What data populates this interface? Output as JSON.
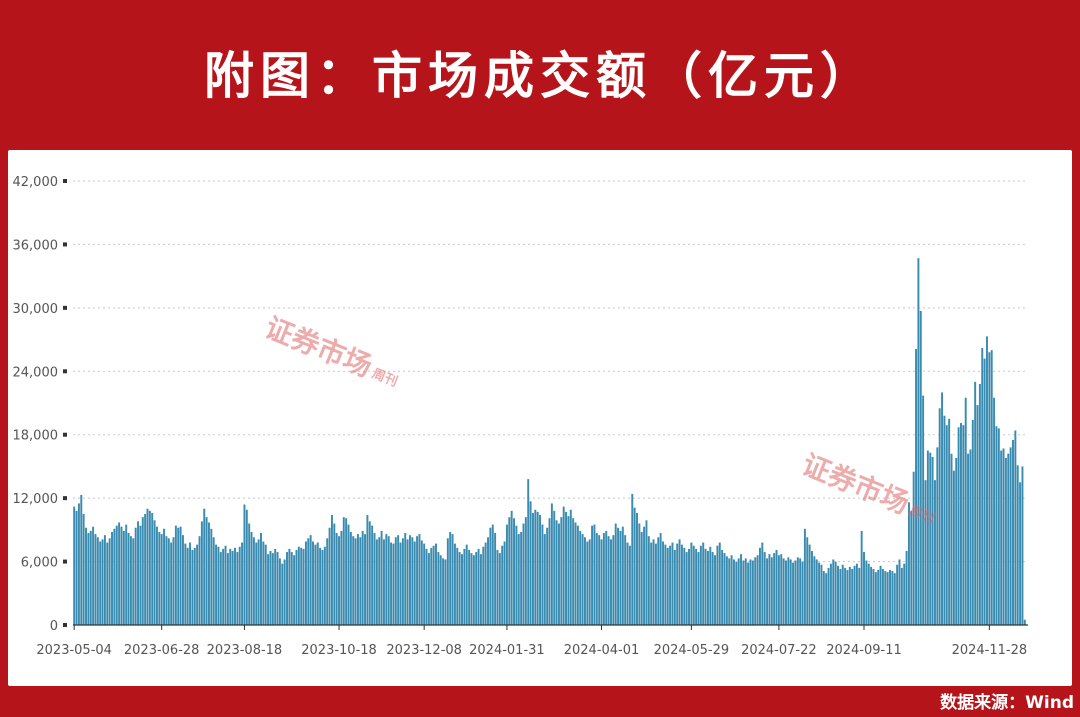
{
  "title": "附图：市场成交额（亿元）",
  "source": "数据来源：Wind",
  "watermark": {
    "main": "证券市场",
    "side": "周刊"
  },
  "colors": {
    "background": "#b5151a",
    "bar": "#3a8bb0",
    "bar_edge": "#2f6f8f",
    "grid": "#c8c8c8",
    "text": "#555555"
  },
  "chart_data": {
    "type": "bar",
    "title": "附图：市场成交额（亿元）",
    "xlabel": "",
    "ylabel": "",
    "ylim": [
      0,
      42000
    ],
    "yticks": [
      0,
      6000,
      12000,
      18000,
      24000,
      30000,
      36000,
      42000
    ],
    "ytick_labels": [
      "0",
      "6,000",
      "12,000",
      "18,000",
      "24,000",
      "30,000",
      "36,000",
      "42,000"
    ],
    "xtick_labels": [
      "2023-05-04",
      "2023-06-28",
      "2023-08-18",
      "2023-10-18",
      "2023-12-08",
      "2024-01-31",
      "2024-04-01",
      "2024-05-29",
      "2024-07-22",
      "2024-09-11",
      "2024-11-28"
    ],
    "xtick_index": [
      0,
      37,
      72,
      112,
      148,
      183,
      223,
      261,
      298,
      334,
      387
    ],
    "grid": "horizontal-dotted",
    "values": [
      11200,
      10800,
      11500,
      12300,
      10500,
      9200,
      8700,
      8900,
      9300,
      8600,
      8300,
      7900,
      8100,
      8500,
      7800,
      8200,
      8800,
      9100,
      9400,
      9700,
      9300,
      8900,
      9500,
      8700,
      8400,
      8200,
      9200,
      9800,
      9400,
      10200,
      10500,
      11000,
      10800,
      10600,
      9900,
      9300,
      8800,
      8600,
      9100,
      8400,
      8200,
      7800,
      8300,
      9400,
      9200,
      9300,
      8500,
      7700,
      7300,
      7800,
      7100,
      7300,
      7600,
      8400,
      9800,
      11000,
      10200,
      9700,
      9100,
      8300,
      7600,
      7400,
      6900,
      7200,
      7500,
      6800,
      7200,
      7000,
      7300,
      6900,
      7400,
      7800,
      11400,
      10900,
      9600,
      8800,
      8300,
      7800,
      8100,
      8700,
      7900,
      7600,
      6700,
      7000,
      6800,
      7200,
      6900,
      6300,
      5800,
      6200,
      6900,
      7200,
      6900,
      6600,
      7100,
      7400,
      7300,
      7200,
      7900,
      8200,
      8500,
      7900,
      7600,
      7800,
      7300,
      7100,
      7400,
      8200,
      9200,
      10400,
      9600,
      8700,
      8400,
      8900,
      10200,
      10100,
      9500,
      8800,
      8400,
      8200,
      8600,
      8300,
      8900,
      8600,
      10400,
      9800,
      9400,
      8700,
      8100,
      8300,
      8900,
      8100,
      8600,
      8400,
      7800,
      7700,
      8300,
      8500,
      7800,
      8200,
      8700,
      8100,
      8500,
      8300,
      7900,
      8400,
      8600,
      8000,
      7700,
      7200,
      6800,
      7300,
      7500,
      7700,
      6900,
      6600,
      6300,
      6200,
      8200,
      8800,
      8600,
      7700,
      7300,
      6900,
      6700,
      7200,
      7600,
      7100,
      6800,
      6600,
      6900,
      7200,
      6700,
      7400,
      7800,
      8300,
      9200,
      9500,
      8700,
      7100,
      6800,
      7500,
      7900,
      9500,
      10200,
      10800,
      10100,
      9400,
      8600,
      8800,
      9600,
      10200,
      13800,
      11700,
      10600,
      10900,
      10700,
      10400,
      9500,
      8600,
      9200,
      10100,
      11500,
      10800,
      9900,
      9600,
      10200,
      11200,
      10700,
      10300,
      10900,
      10100,
      9700,
      9400,
      8900,
      8600,
      8300,
      7900,
      8100,
      9400,
      9500,
      8700,
      8500,
      8100,
      8700,
      8900,
      8400,
      8100,
      8500,
      9600,
      9200,
      8900,
      9300,
      8500,
      7800,
      7500,
      12400,
      11100,
      10600,
      9600,
      8800,
      9300,
      9900,
      8400,
      7800,
      8100,
      7700,
      8300,
      8700,
      7900,
      7600,
      7300,
      7500,
      7800,
      7100,
      7700,
      8100,
      7600,
      7300,
      6900,
      7200,
      7800,
      7500,
      7200,
      6900,
      7500,
      7800,
      7200,
      7000,
      7400,
      6900,
      6600,
      7500,
      7800,
      7100,
      6800,
      6500,
      6300,
      6600,
      6200,
      6000,
      6300,
      6700,
      6100,
      6300,
      5900,
      6200,
      6100,
      6400,
      6600,
      7300,
      7800,
      6900,
      6300,
      6700,
      6400,
      6800,
      7100,
      6600,
      6700,
      6300,
      6100,
      6400,
      6200,
      5900,
      6100,
      6400,
      6300,
      6000,
      9100,
      8300,
      7600,
      7000,
      6500,
      6200,
      5900,
      5700,
      5100,
      4900,
      5400,
      5800,
      6200,
      6000,
      5600,
      5300,
      5700,
      5400,
      5200,
      5500,
      5300,
      5600,
      5800,
      5400,
      8900,
      6900,
      6100,
      5800,
      5500,
      5300,
      5000,
      5200,
      5600,
      5300,
      5100,
      5000,
      5200,
      5100,
      4900,
      5700,
      6200,
      5400,
      5800,
      7000,
      11600,
      10800,
      14500,
      26100,
      34700,
      29700,
      21700,
      13700,
      16500,
      16300,
      15900,
      13700,
      16800,
      20500,
      22000,
      19800,
      18900,
      19500,
      16200,
      14600,
      15800,
      18700,
      19100,
      18900,
      21500,
      16200,
      16600,
      19400,
      23000,
      20800,
      22800,
      26200,
      25200,
      27300,
      25800,
      26000,
      21500,
      18800,
      18600,
      16500,
      16700,
      15800,
      16200,
      16800,
      17500,
      18400,
      15100,
      13500,
      15000,
      500
    ]
  }
}
